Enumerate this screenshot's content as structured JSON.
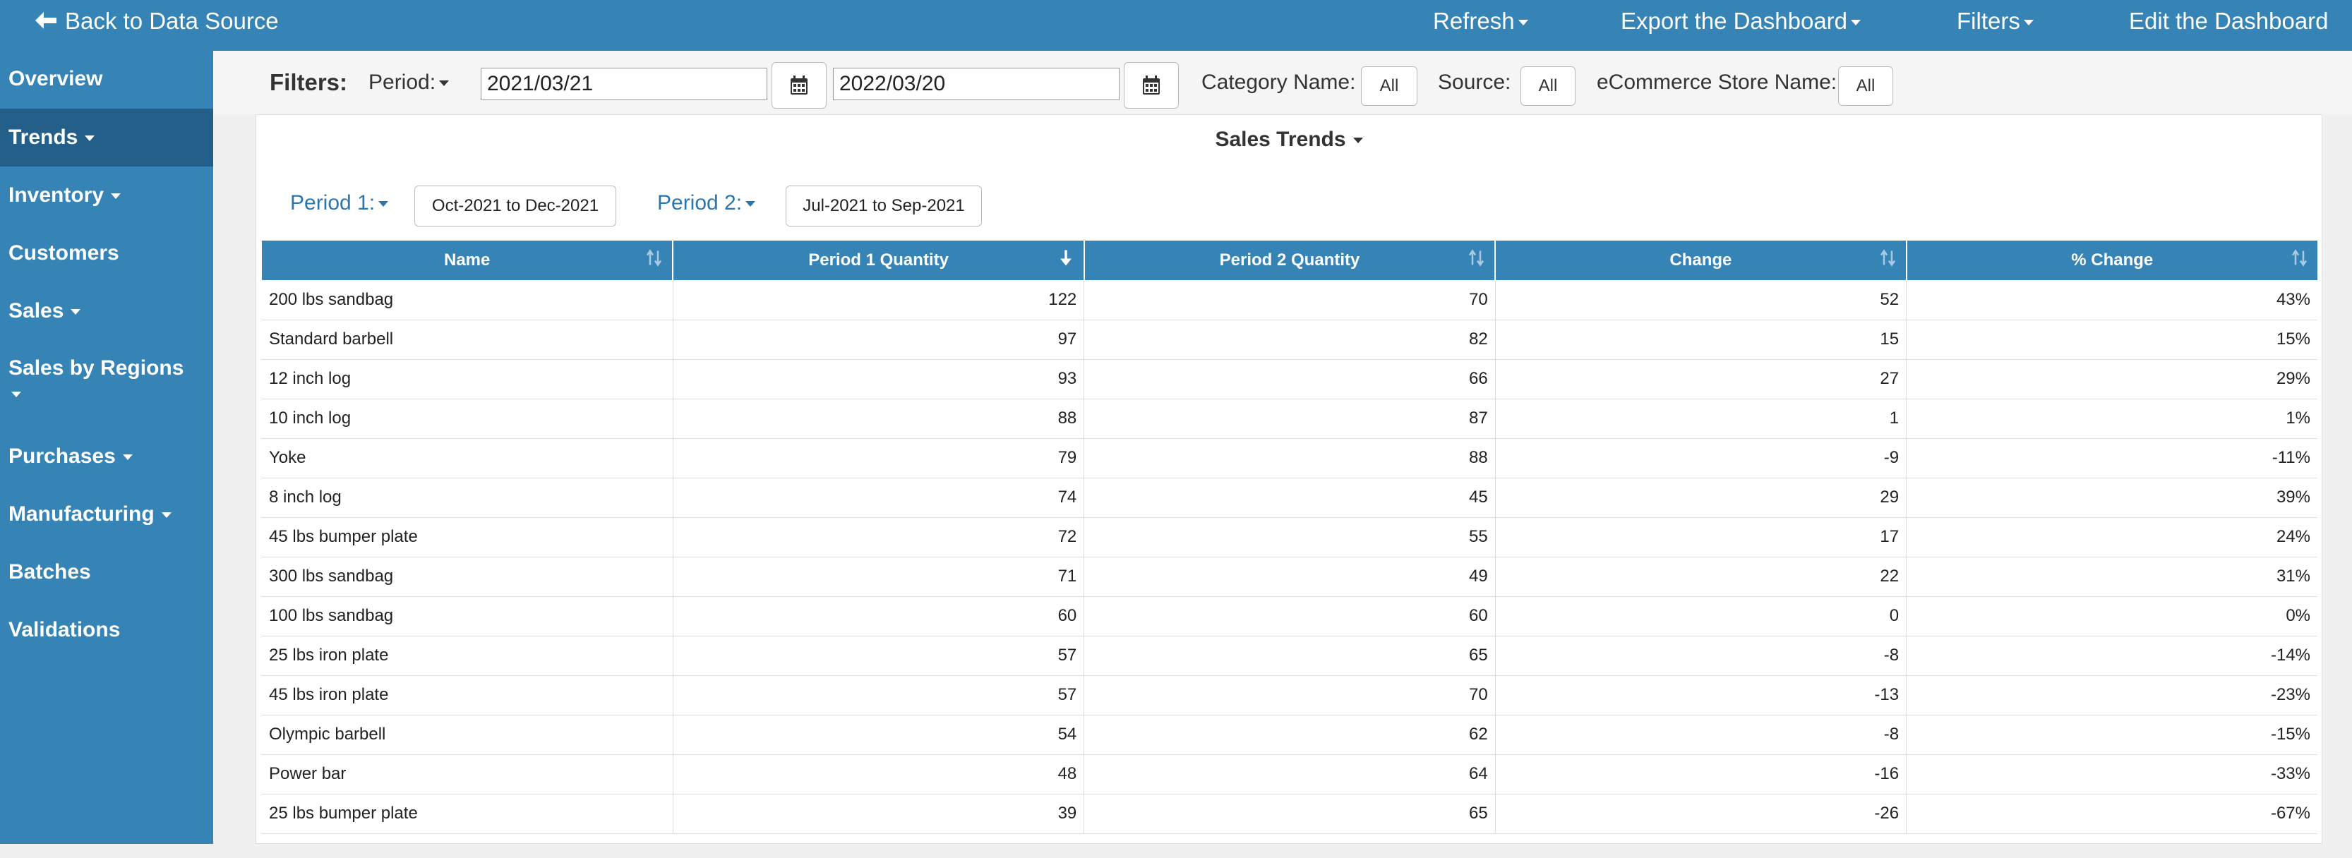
{
  "topbar": {
    "back_label": "Back to Data Source",
    "refresh_label": "Refresh",
    "export_label": "Export the Dashboard",
    "filters_label": "Filters",
    "edit_label": "Edit the Dashboard"
  },
  "sidebar": {
    "items": [
      {
        "label": "Overview",
        "has_caret": false,
        "active": false
      },
      {
        "label": "Trends",
        "has_caret": true,
        "active": true
      },
      {
        "label": "Inventory",
        "has_caret": true,
        "active": false
      },
      {
        "label": "Customers",
        "has_caret": false,
        "active": false
      },
      {
        "label": "Sales",
        "has_caret": true,
        "active": false
      },
      {
        "label": "Sales by Regions",
        "has_caret": true,
        "active": false
      },
      {
        "label": "Purchases",
        "has_caret": true,
        "active": false
      },
      {
        "label": "Manufacturing",
        "has_caret": true,
        "active": false
      },
      {
        "label": "Batches",
        "has_caret": false,
        "active": false
      },
      {
        "label": "Validations",
        "has_caret": false,
        "active": false
      }
    ]
  },
  "filters": {
    "title": "Filters:",
    "period_label": "Period:",
    "start_date": "2021/03/21",
    "end_date": "2022/03/20",
    "category_label": "Category Name:",
    "category_value": "All",
    "source_label": "Source:",
    "source_value": "All",
    "store_label": "eCommerce Store Name:",
    "store_value": "All"
  },
  "panel": {
    "title": "Sales Trends",
    "period1_label": "Period 1:",
    "period1_value": "Oct-2021 to Dec-2021",
    "period2_label": "Period 2:",
    "period2_value": "Jul-2021 to Sep-2021"
  },
  "table": {
    "columns": [
      "Name",
      "Period 1 Quantity",
      "Period 2 Quantity",
      "Change",
      "% Change"
    ],
    "sorted_column": 1,
    "rows": [
      [
        "200 lbs sandbag",
        "122",
        "70",
        "52",
        "43%"
      ],
      [
        "Standard barbell",
        "97",
        "82",
        "15",
        "15%"
      ],
      [
        "12 inch log",
        "93",
        "66",
        "27",
        "29%"
      ],
      [
        "10 inch log",
        "88",
        "87",
        "1",
        "1%"
      ],
      [
        "Yoke",
        "79",
        "88",
        "-9",
        "-11%"
      ],
      [
        "8 inch log",
        "74",
        "45",
        "29",
        "39%"
      ],
      [
        "45 lbs bumper plate",
        "72",
        "55",
        "17",
        "24%"
      ],
      [
        "300 lbs sandbag",
        "71",
        "49",
        "22",
        "31%"
      ],
      [
        "100 lbs sandbag",
        "60",
        "60",
        "0",
        "0%"
      ],
      [
        "25 lbs iron plate",
        "57",
        "65",
        "-8",
        "-14%"
      ],
      [
        "45 lbs iron plate",
        "57",
        "70",
        "-13",
        "-23%"
      ],
      [
        "Olympic barbell",
        "54",
        "62",
        "-8",
        "-15%"
      ],
      [
        "Power bar",
        "48",
        "64",
        "-16",
        "-33%"
      ],
      [
        "25 lbs bumper plate",
        "39",
        "65",
        "-26",
        "-67%"
      ]
    ]
  },
  "colors": {
    "primary": "#3683b6",
    "active_sidebar": "#245f89",
    "link": "#2a77b0"
  }
}
